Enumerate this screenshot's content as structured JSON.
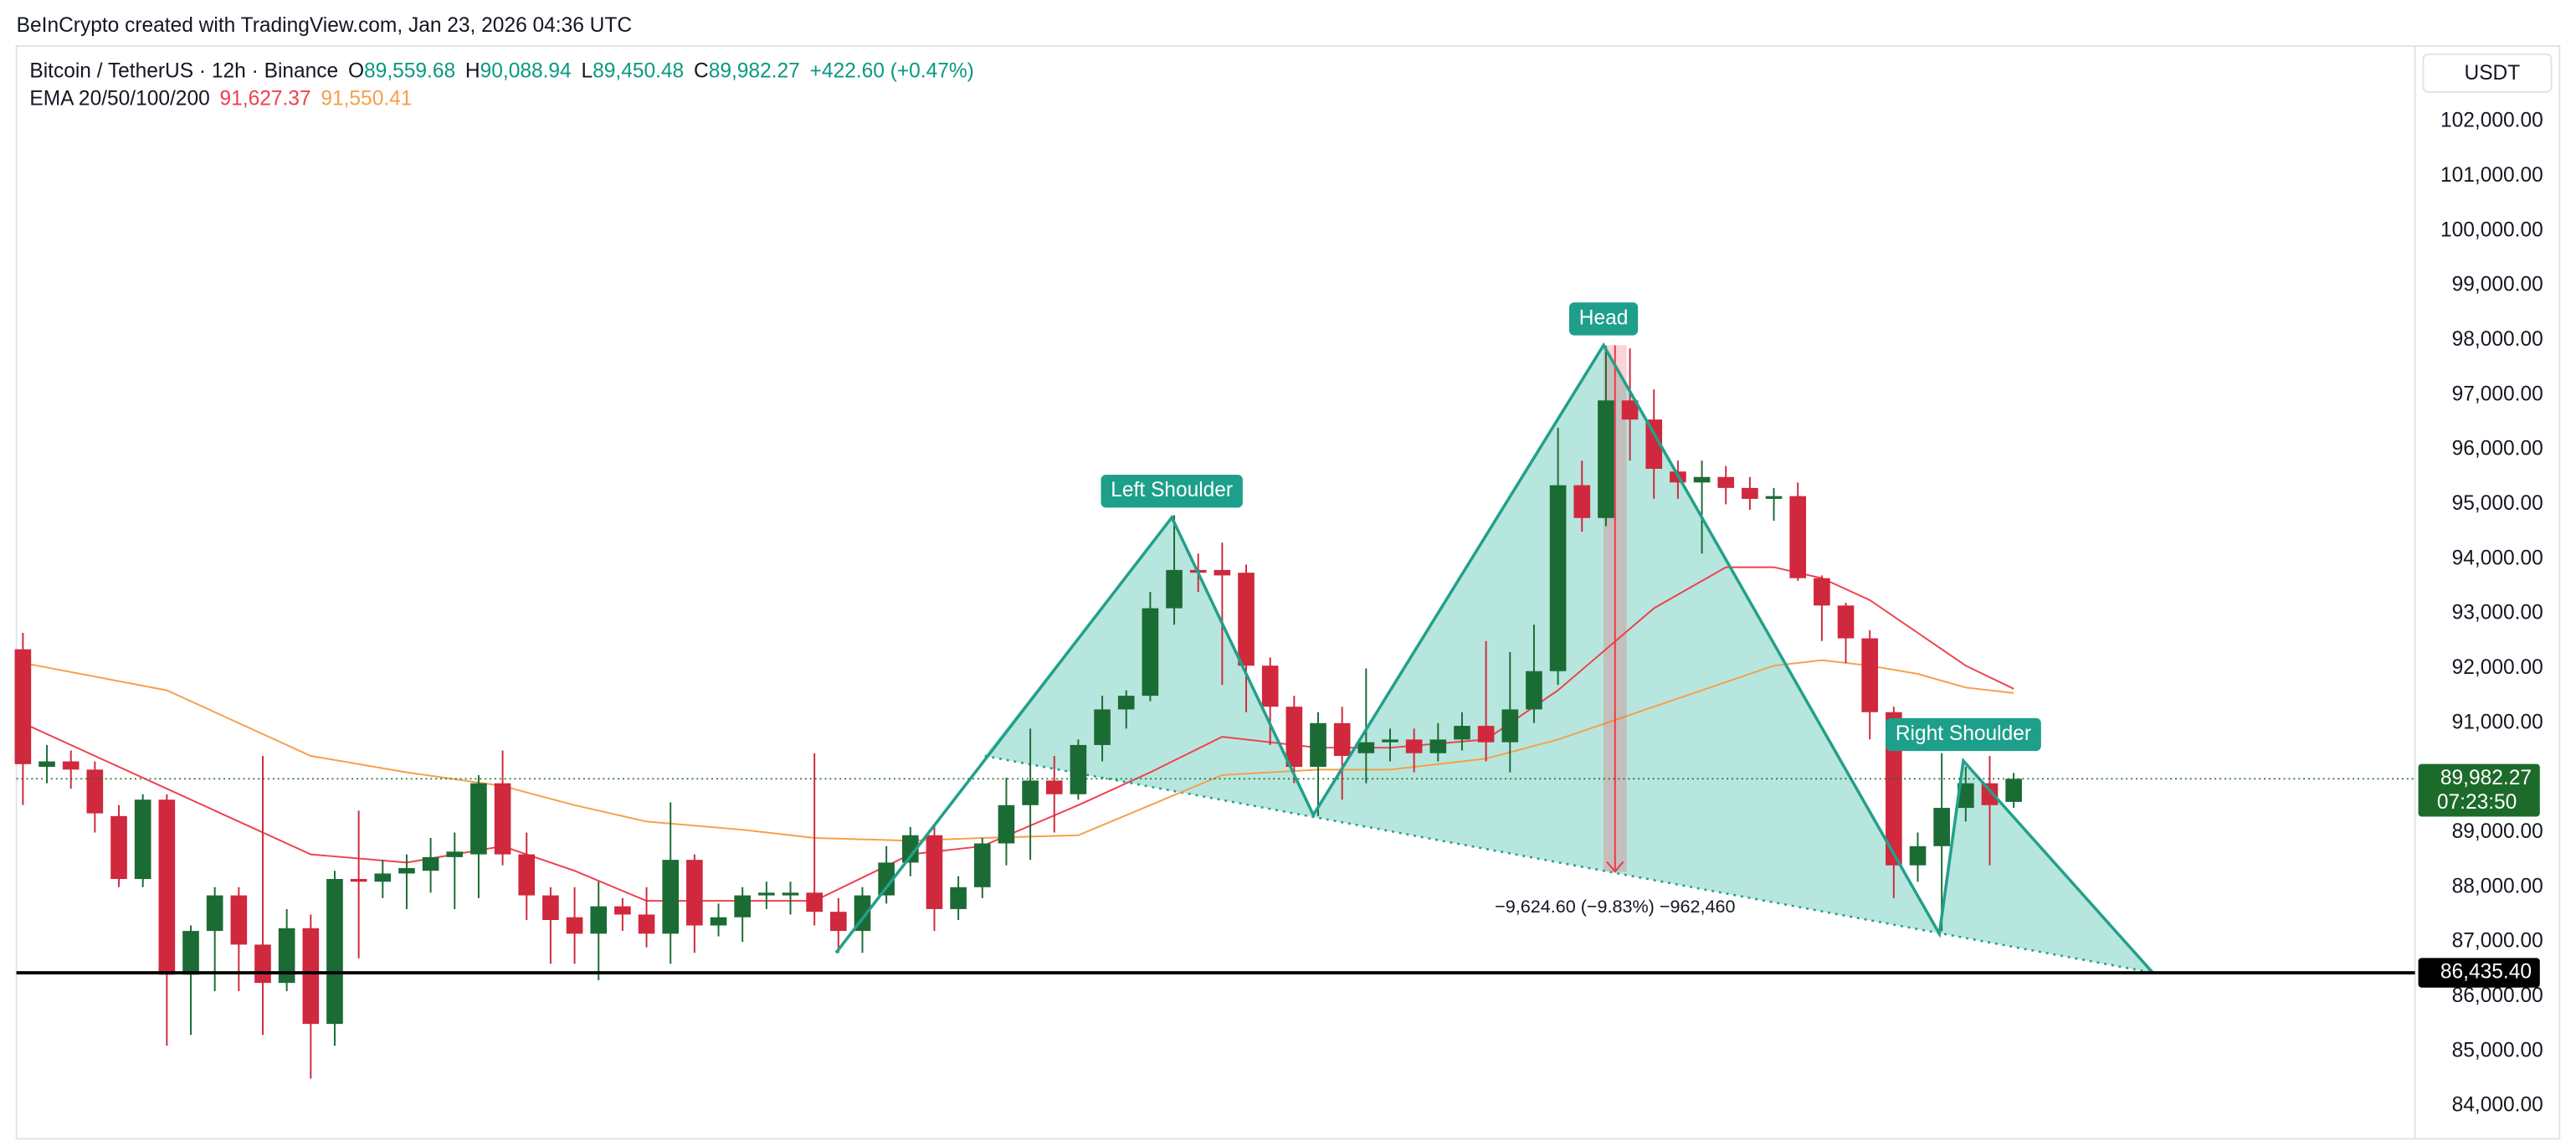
{
  "header": {
    "title": "BeInCrypto created with TradingView.com, Jan 23, 2026 04:36 UTC"
  },
  "chart_data": {
    "type": "candlestick",
    "legend": {
      "symbol": "Bitcoin / TetherUS · 12h · Binance",
      "ohlc": [
        {
          "key": "O",
          "value": "89,559.68"
        },
        {
          "key": "H",
          "value": "90,088.94"
        },
        {
          "key": "L",
          "value": "89,450.48"
        },
        {
          "key": "C",
          "value": "89,982.27"
        }
      ],
      "change": "+422.60 (+0.47%)",
      "ema_title": "EMA 20/50/100/200"
    },
    "currency": "USDT",
    "up_color": "#1b6b35",
    "down_color": "#d0283d",
    "xlim": [
      -0.27,
      99.73
    ],
    "ylim": [
      83490,
      103380
    ],
    "yticks": [
      {
        "value": 84000,
        "label": "84,000.00"
      },
      {
        "value": 85000,
        "label": "85,000.00"
      },
      {
        "value": 86000,
        "label": "86,000.00"
      },
      {
        "value": 87000,
        "label": "87,000.00"
      },
      {
        "value": 88000,
        "label": "88,000.00"
      },
      {
        "value": 89000,
        "label": "89,000.00"
      },
      {
        "value": 91000,
        "label": "91,000.00"
      },
      {
        "value": 92000,
        "label": "92,000.00"
      },
      {
        "value": 93000,
        "label": "93,000.00"
      },
      {
        "value": 94000,
        "label": "94,000.00"
      },
      {
        "value": 95000,
        "label": "95,000.00"
      },
      {
        "value": 96000,
        "label": "96,000.00"
      },
      {
        "value": 97000,
        "label": "97,000.00"
      },
      {
        "value": 98000,
        "label": "98,000.00"
      },
      {
        "value": 99000,
        "label": "99,000.00"
      },
      {
        "value": 100000,
        "label": "100,000.00"
      },
      {
        "value": 101000,
        "label": "101,000.00"
      },
      {
        "value": 102000,
        "label": "102,000.00"
      }
    ],
    "candles": {
      "open": [
        92350,
        90200,
        90300,
        90150,
        89300,
        88150,
        89600,
        86400,
        87200,
        87850,
        86950,
        86250,
        87250,
        85500,
        88150,
        88100,
        88250,
        88300,
        88550,
        88600,
        89900,
        88600,
        87850,
        87450,
        87150,
        87650,
        87500,
        87150,
        88500,
        87300,
        87450,
        87850,
        87850,
        87900,
        87550,
        87200,
        87850,
        88450,
        88950,
        87600,
        88000,
        88800,
        89500,
        89950,
        89700,
        90600,
        91250,
        91500,
        93100,
        93800,
        93800,
        93750,
        92050,
        91300,
        90200,
        91000,
        90450,
        90650,
        90700,
        90450,
        90700,
        90950,
        90650,
        91250,
        91950,
        95350,
        94750,
        96900,
        96550,
        95600,
        95400,
        95500,
        95300,
        95100,
        95150,
        93650,
        93150,
        92550,
        91200,
        88400,
        88750,
        89450,
        89900,
        89559.68
      ],
      "high": [
        92650,
        90600,
        90500,
        90300,
        89500,
        89700,
        89700,
        87300,
        88000,
        88000,
        90400,
        87600,
        87500,
        88300,
        89400,
        88500,
        88600,
        88900,
        89000,
        90050,
        90500,
        89000,
        88000,
        88000,
        88100,
        87800,
        88000,
        89550,
        88600,
        87700,
        88000,
        88100,
        88100,
        90450,
        87800,
        88000,
        88750,
        89100,
        89150,
        88200,
        88900,
        90000,
        90900,
        90400,
        90700,
        91500,
        91600,
        93400,
        94800,
        94100,
        94300,
        93900,
        92200,
        91500,
        91200,
        91300,
        92000,
        90900,
        90900,
        91000,
        91200,
        92500,
        92300,
        92800,
        96400,
        95800,
        97900,
        97850,
        97100,
        95800,
        95800,
        95700,
        95500,
        95300,
        95400,
        93700,
        93200,
        92700,
        91300,
        89000,
        90450,
        90200,
        90400,
        90088.94
      ],
      "low": [
        89500,
        89900,
        89800,
        89000,
        88000,
        88000,
        85100,
        85300,
        86100,
        86100,
        85300,
        86100,
        84500,
        85100,
        86700,
        87800,
        87600,
        87900,
        87600,
        87800,
        88400,
        87400,
        86600,
        86600,
        86300,
        87200,
        86900,
        86600,
        86800,
        87100,
        87000,
        87600,
        87500,
        87300,
        86800,
        86800,
        87700,
        88200,
        87200,
        87400,
        87800,
        88400,
        88500,
        89000,
        89600,
        90300,
        90900,
        91400,
        92800,
        93400,
        91700,
        91200,
        90600,
        89900,
        89300,
        89600,
        89900,
        90300,
        90100,
        90300,
        90500,
        90300,
        90100,
        91000,
        91700,
        94500,
        94600,
        95800,
        95100,
        95100,
        94100,
        95000,
        94900,
        94700,
        93600,
        92500,
        92100,
        90700,
        87800,
        88100,
        87200,
        89200,
        88400,
        89450.48
      ],
      "close": [
        90250,
        90300,
        90150,
        89350,
        88150,
        89600,
        86400,
        87200,
        87850,
        86950,
        86250,
        87250,
        85500,
        88150,
        88100,
        88250,
        88350,
        88550,
        88650,
        89900,
        88600,
        87850,
        87400,
        87150,
        87650,
        87500,
        87150,
        88500,
        87300,
        87450,
        87850,
        87900,
        87900,
        87550,
        87200,
        87850,
        88450,
        88950,
        87600,
        88000,
        88800,
        89500,
        89950,
        89700,
        90600,
        91250,
        91500,
        93100,
        93800,
        93750,
        93700,
        92050,
        91300,
        90200,
        91000,
        90400,
        90650,
        90700,
        90450,
        90700,
        90950,
        90650,
        91250,
        91950,
        95350,
        94750,
        96900,
        96550,
        95650,
        95400,
        95500,
        95300,
        95100,
        95150,
        93650,
        93150,
        92550,
        91200,
        88400,
        88750,
        89450,
        89900,
        89500,
        89982.27
      ]
    },
    "ema": [
      {
        "color": "#f0404f",
        "value_label": "91,627.37",
        "x": [
          0,
          6,
          12,
          16,
          20,
          23,
          26,
          30,
          33,
          37,
          40,
          44,
          47,
          50,
          54,
          57,
          61,
          64,
          68,
          71,
          73,
          75,
          77,
          79,
          81,
          83
        ],
        "values": [
          91000,
          89800,
          88600,
          88450,
          88750,
          88300,
          87750,
          87750,
          87750,
          88600,
          88750,
          89500,
          90100,
          90750,
          90550,
          90550,
          90700,
          91600,
          93100,
          93850,
          93850,
          93650,
          93250,
          92650,
          92050,
          91627.37
        ]
      },
      {
        "color": "#f5a04a",
        "value_label": "91,550.41",
        "x": [
          0,
          6,
          12,
          16,
          20,
          23,
          26,
          30,
          33,
          37,
          40,
          44,
          47,
          50,
          54,
          57,
          61,
          64,
          68,
          71,
          73,
          75,
          77,
          79,
          81,
          83
        ],
        "values": [
          92100,
          91600,
          90400,
          90100,
          89850,
          89500,
          89200,
          89050,
          88900,
          88850,
          88900,
          88950,
          89500,
          90050,
          90150,
          90150,
          90350,
          90700,
          91300,
          91750,
          92050,
          92150,
          92050,
          91900,
          91650,
          91550.41
        ]
      }
    ],
    "pattern": {
      "color": "#22a08a",
      "fill": "#b3e5dc",
      "x": [
        33.9,
        47.9,
        53.8,
        65.9,
        79.9,
        80.9,
        88.8
      ],
      "y": [
        86800,
        94760,
        89320,
        97910,
        87150,
        90310,
        86435.4
      ],
      "labels": [
        "Left Shoulder",
        "Head",
        "Right Shoulder"
      ]
    },
    "neckline": {
      "x": [
        40.1,
        88.8
      ],
      "y": [
        90400,
        86435.4
      ]
    },
    "measure": {
      "from": 97910,
      "to": 88285.4,
      "label": "−9,624.60 (−9.83%) −962,460"
    },
    "support": {
      "value": 86435.4,
      "label": "86,435.40"
    },
    "last_price": {
      "value": 89982.27,
      "label": "89,982.27",
      "countdown": "07:23:50",
      "color": "#1d6b2a"
    }
  }
}
